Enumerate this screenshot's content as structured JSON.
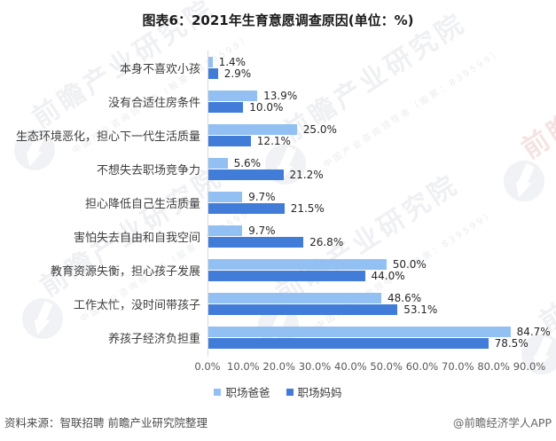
{
  "title": "图表6：2021年生育意愿调查原因(单位：%)",
  "chart_data": {
    "type": "bar",
    "orientation": "horizontal",
    "title": "图表6：2021年生育意愿调查原因(单位：%)",
    "unit": "%",
    "categories": [
      "本身不喜欢小孩",
      "没有合适住房条件",
      "生态环境恶化，担心下一代生活质量",
      "不想失去职场竞争力",
      "担心降低自己生活质量",
      "害怕失去自由和自我空间",
      "教育资源失衡，担心孩子发展",
      "工作太忙，没时间带孩子",
      "养孩子经济负担重"
    ],
    "series": [
      {
        "key": "working-dad",
        "name": "职场爸爸",
        "color": "#92C0F2",
        "values": [
          1.4,
          13.9,
          25.0,
          5.6,
          9.7,
          9.7,
          50.0,
          48.6,
          84.7
        ]
      },
      {
        "key": "working-mom",
        "name": "职场妈妈",
        "color": "#407CD8",
        "values": [
          2.9,
          10.0,
          12.1,
          21.2,
          21.5,
          26.8,
          44.0,
          53.1,
          78.5
        ]
      }
    ],
    "xlim": [
      0,
      90
    ],
    "x_ticks": [
      "0.0%",
      "10.0%",
      "20.0%",
      "30.0%",
      "40.0%",
      "50.0%",
      "60.0%",
      "70.0%",
      "80.0%",
      "90.0%"
    ],
    "grid": "none",
    "legend_position": "bottom",
    "axis_color": "#d9d9d9"
  },
  "legend": {
    "items": [
      {
        "label": "职场爸爸",
        "color": "#92C0F2"
      },
      {
        "label": "职场妈妈",
        "color": "#407CD8"
      }
    ]
  },
  "footer": {
    "source": "资料来源：智联招聘 前瞻产业研究院整理",
    "credit": "@前瞻经济学人APP"
  },
  "watermark": {
    "brand": "前瞻产业研究院",
    "sub": "中国产业咨询领导者（股票：839599）"
  }
}
